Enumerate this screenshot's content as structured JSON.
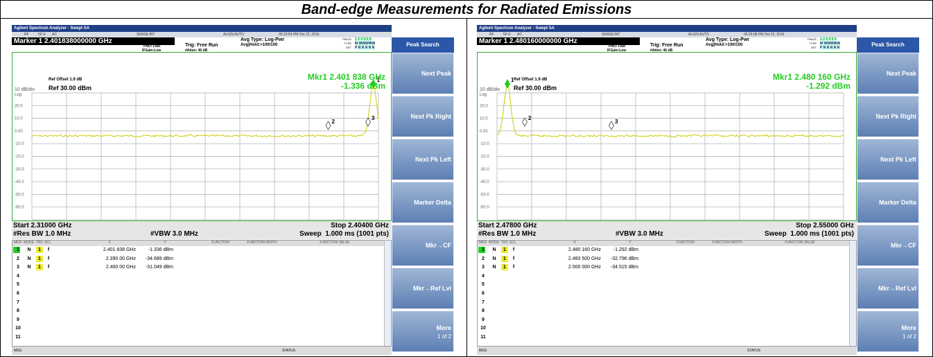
{
  "title": "Band-edge Measurements for Radiated Emissions",
  "panels": [
    {
      "app_title": "Agilent Spectrum Analyzer - Swept SA",
      "status_bar": [
        "RF",
        "50 Ω",
        "AC",
        "SENSE:INT",
        "ALIGN AUTO",
        "05:23:59 PM Oct 22, 2016"
      ],
      "marker_line": "Marker 1 2.401838000000 GHz",
      "pno": "PNO: Fast",
      "ifgain": "IFGain:Low",
      "trig": "Trig: Free Run",
      "atten": "#Atten: 46 dB",
      "avg_type": "Avg Type: Log-Pwr",
      "avg_hold": "Avg|Hold:>100/100",
      "trace_labels": [
        "TRACE",
        "TYPE",
        "DET"
      ],
      "trace_values": [
        "1 2 3 4 5 6",
        "M WWWWW",
        "P N N N N N"
      ],
      "ref_offset": "Ref Offset 1.9 dB",
      "scale": "10 dB/div",
      "ref": "Ref 30.00 dBm",
      "log": "Log",
      "mkr_readout": "Mkr1 2.401 838 GHz",
      "mkr_value": "-1.336 dBm",
      "y_labels": [
        "20.0",
        "10.0",
        "0.00",
        "-10.0",
        "-20.0",
        "-30.0",
        "-40.0",
        "-50.0",
        "-60.0"
      ],
      "marker_labels": [
        "1",
        "2",
        "3"
      ],
      "start": "Start 2.31000 GHz",
      "stop": "Stop 2.40400 GHz",
      "rbw": "#Res BW 1.0 MHz",
      "vbw": "#VBW 3.0 MHz",
      "sweep": "Sweep  1.000 ms (1001 pts)",
      "table": {
        "headers": [
          "MKR",
          "MODE",
          "TRC",
          "SCL",
          "X",
          "Y",
          "FUNCTION",
          "FUNCTION WIDTH",
          "FUNCTION VALUE"
        ],
        "rows": [
          [
            "1",
            "N",
            "1",
            "f",
            "2.401 838 GHz",
            "-1.336 dBm"
          ],
          [
            "2",
            "N",
            "1",
            "f",
            "2.390 00 GHz",
            "-34.689 dBm"
          ],
          [
            "3",
            "N",
            "1",
            "f",
            "2.400 00 GHz",
            "-31.049 dBm"
          ],
          [
            "4"
          ],
          [
            "5"
          ],
          [
            "6"
          ],
          [
            "7"
          ],
          [
            "8"
          ],
          [
            "9"
          ],
          [
            "10"
          ],
          [
            "11"
          ]
        ]
      },
      "softkey_title": "Peak Search",
      "softkeys": [
        "Next Peak",
        "Next Pk Right",
        "Next Pk Left",
        "Marker Delta",
        "Mkr→CF",
        "Mkr→Ref Lvl",
        "More"
      ],
      "more_sub": "1 of 2",
      "footer": [
        "MSG",
        "STATUS"
      ]
    },
    {
      "app_title": "Agilent Spectrum Analyzer - Swept SA",
      "status_bar": [
        "RF",
        "50 Ω",
        "AC",
        "SENSE:INT",
        "ALIGN AUTO",
        "05:26:08 PM Oct 22, 2016"
      ],
      "marker_line": "Marker 1 2.480160000000 GHz",
      "pno": "PNO: Fast",
      "ifgain": "IFGain:Low",
      "trig": "Trig: Free Run",
      "atten": "#Atten: 46 dB",
      "avg_type": "Avg Type: Log-Pwr",
      "avg_hold": "Avg|Hold:>100/100",
      "trace_labels": [
        "TRACE",
        "TYPE",
        "DET"
      ],
      "trace_values": [
        "1 2 3 4 5 6",
        "M WWWWW",
        "P N N N N N"
      ],
      "ref_offset": "Ref Offset 1.9 dB",
      "scale": "10 dB/div",
      "ref": "Ref 30.00 dBm",
      "log": "Log",
      "mkr_readout": "Mkr1 2.480 160 GHz",
      "mkr_value": "-1.292 dBm",
      "y_labels": [
        "20.0",
        "10.0",
        "0.00",
        "-10.0",
        "-20.0",
        "-30.0",
        "-40.0",
        "-50.0",
        "-60.0"
      ],
      "marker_labels": [
        "1",
        "2",
        "3"
      ],
      "start": "Start 2.47800 GHz",
      "stop": "Stop 2.55000 GHz",
      "rbw": "#Res BW 1.0 MHz",
      "vbw": "#VBW 3.0 MHz",
      "sweep": "Sweep  1.000 ms (1001 pts)",
      "table": {
        "headers": [
          "MKR",
          "MODE",
          "TRC",
          "SCL",
          "X",
          "Y",
          "FUNCTION",
          "FUNCTION WIDTH",
          "FUNCTION VALUE"
        ],
        "rows": [
          [
            "1",
            "N",
            "1",
            "f",
            "2.480 160 GHz",
            "-1.292 dBm"
          ],
          [
            "2",
            "N",
            "1",
            "f",
            "2.483 500 GHz",
            "-32.796 dBm"
          ],
          [
            "3",
            "N",
            "1",
            "f",
            "2.500 000 GHz",
            "-34.515 dBm"
          ],
          [
            "4"
          ],
          [
            "5"
          ],
          [
            "6"
          ],
          [
            "7"
          ],
          [
            "8"
          ],
          [
            "9"
          ],
          [
            "10"
          ],
          [
            "11"
          ]
        ]
      },
      "softkey_title": "Peak Search",
      "softkeys": [
        "Next Peak",
        "Next Pk Right",
        "Next Pk Left",
        "Marker Delta",
        "Mkr→CF",
        "Mkr→Ref Lvl",
        "More"
      ],
      "more_sub": "1 of 2",
      "footer": [
        "MSG",
        "STATUS"
      ]
    }
  ]
}
